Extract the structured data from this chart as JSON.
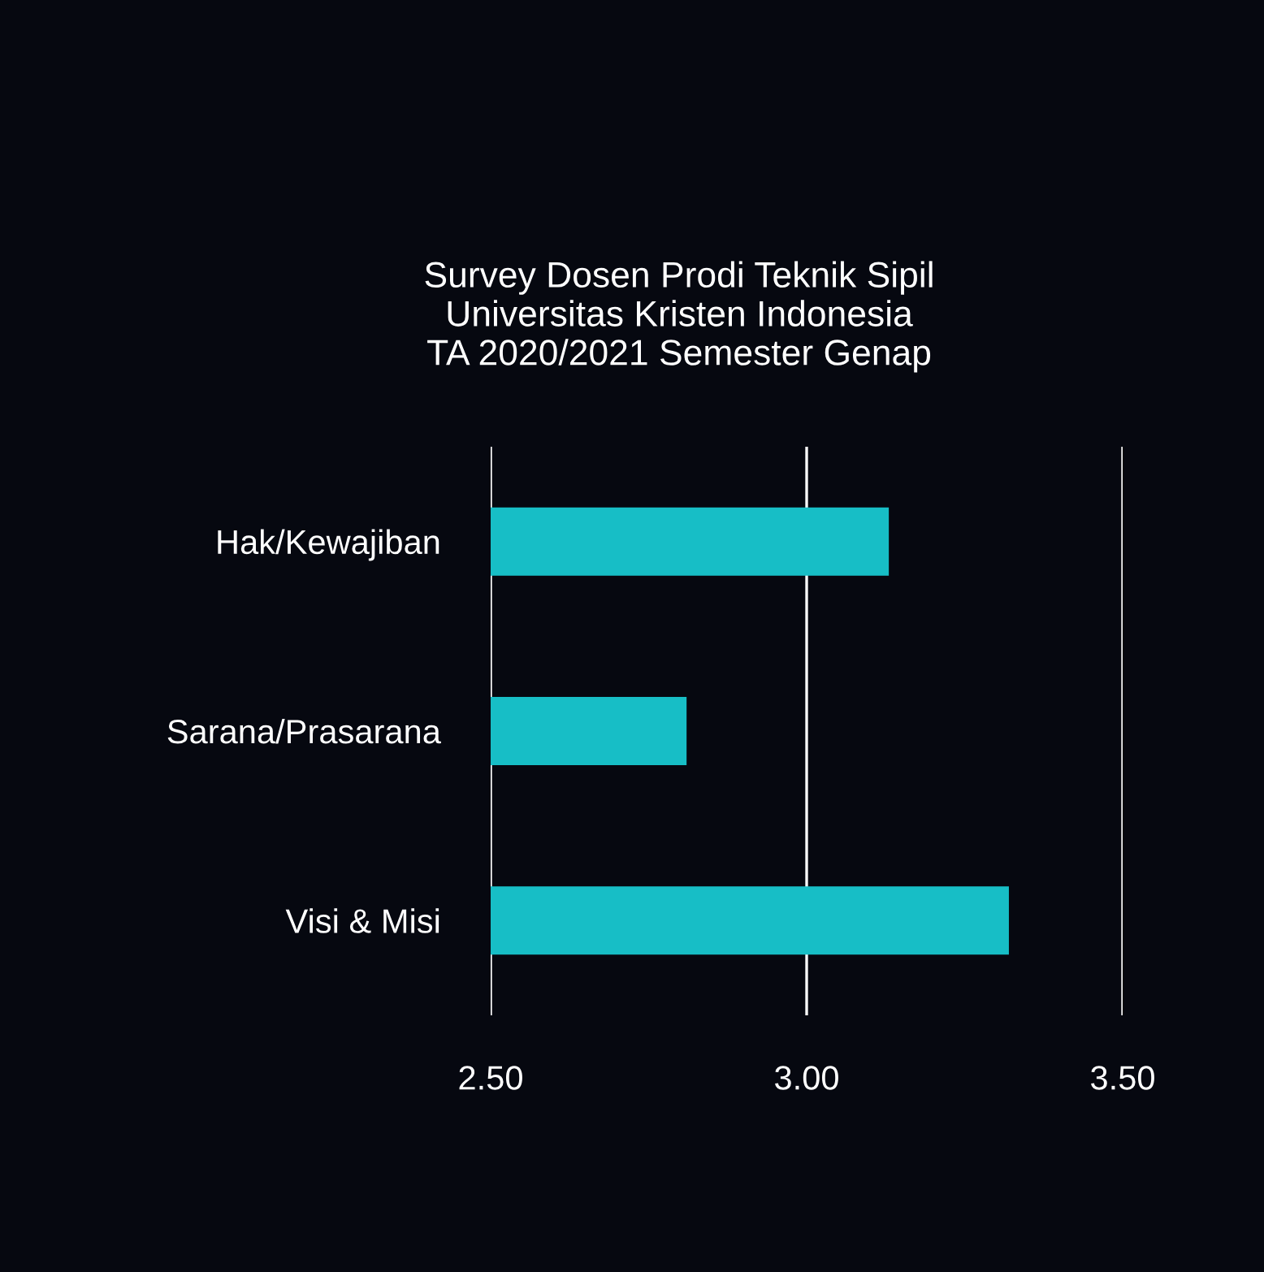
{
  "chart_data": {
    "type": "bar",
    "orientation": "horizontal",
    "title": "Survey Dosen Prodi Teknik Sipil\nUniversitas Kristen Indonesia\nTA 2020/2021 Semester Genap",
    "categories": [
      "Hak/Kewajiban",
      "Sarana/Prasarana",
      "Visi & Misi"
    ],
    "values": [
      3.13,
      2.81,
      3.32
    ],
    "color": "#17bec6",
    "xlim": [
      2.5,
      3.5
    ],
    "xticks": [
      {
        "value": 2.5,
        "label": "2.50"
      },
      {
        "value": 3.0,
        "label": "3.00"
      },
      {
        "value": 3.5,
        "label": "3.50"
      }
    ],
    "grid": "x"
  }
}
